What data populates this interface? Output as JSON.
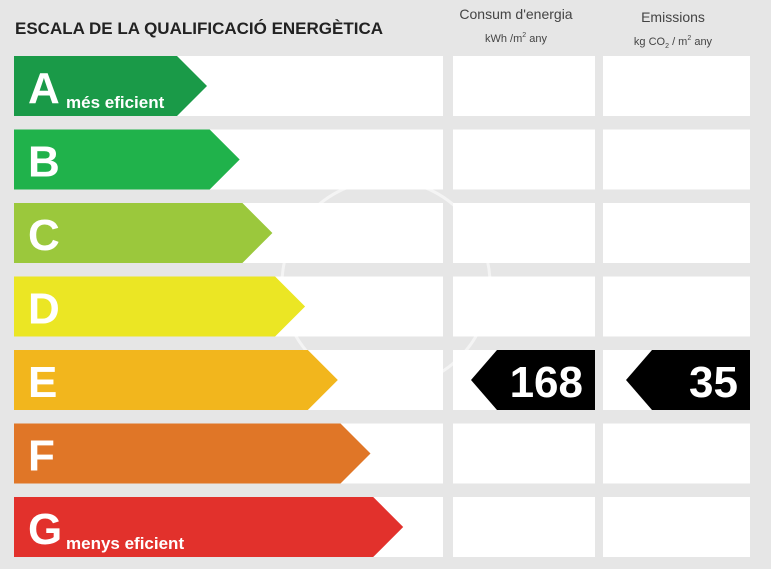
{
  "title": "ESCALA DE LA QUALIFICACIÓ ENERGÈTICA",
  "columns": [
    {
      "name": "Consum d'energia",
      "unit": [
        "kWh /m",
        "2",
        " any"
      ]
    },
    {
      "name": "Emissions",
      "unit": [
        "kg CO",
        "2",
        " / m",
        "2",
        " any"
      ]
    }
  ],
  "rows": [
    {
      "letter": "A",
      "label": "més eficient",
      "color": "#1a9a48"
    },
    {
      "letter": "B",
      "color": "#20b24b"
    },
    {
      "letter": "C",
      "color": "#9bc83c"
    },
    {
      "letter": "D",
      "color": "#ebe624"
    },
    {
      "letter": "E",
      "color": "#f2b61d",
      "energy": 168,
      "emissions": 35
    },
    {
      "letter": "F",
      "color": "#e07627"
    },
    {
      "letter": "G",
      "label": "menys eficient",
      "color": "#e2312c"
    }
  ]
}
